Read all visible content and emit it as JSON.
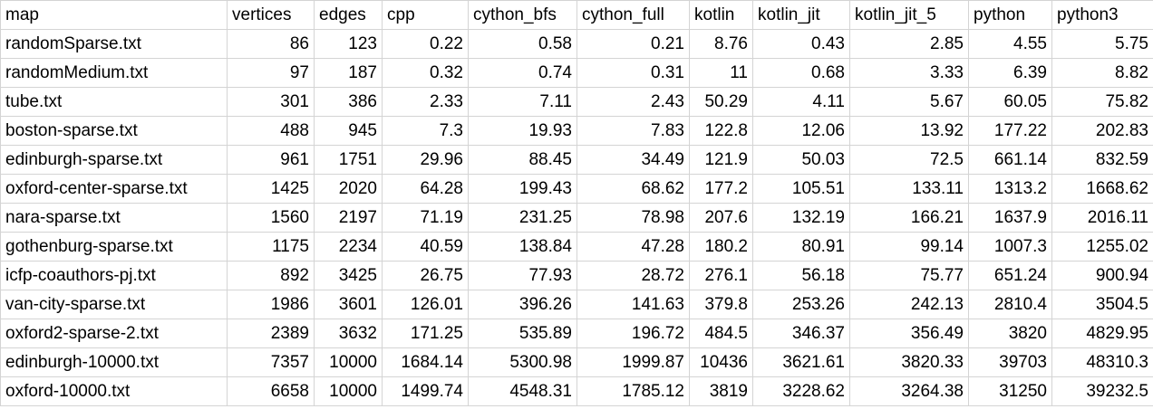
{
  "columns": [
    "map",
    "vertices",
    "edges",
    "cpp",
    "cython_bfs",
    "cython_full",
    "kotlin",
    "kotlin_jit",
    "kotlin_jit_5",
    "python",
    "python3"
  ],
  "rows": [
    [
      "randomSparse.txt",
      "86",
      "123",
      "0.22",
      "0.58",
      "0.21",
      "8.76",
      "0.43",
      "2.85",
      "4.55",
      "5.75"
    ],
    [
      "randomMedium.txt",
      "97",
      "187",
      "0.32",
      "0.74",
      "0.31",
      "11",
      "0.68",
      "3.33",
      "6.39",
      "8.82"
    ],
    [
      "tube.txt",
      "301",
      "386",
      "2.33",
      "7.11",
      "2.43",
      "50.29",
      "4.11",
      "5.67",
      "60.05",
      "75.82"
    ],
    [
      "boston-sparse.txt",
      "488",
      "945",
      "7.3",
      "19.93",
      "7.83",
      "122.8",
      "12.06",
      "13.92",
      "177.22",
      "202.83"
    ],
    [
      "edinburgh-sparse.txt",
      "961",
      "1751",
      "29.96",
      "88.45",
      "34.49",
      "121.9",
      "50.03",
      "72.5",
      "661.14",
      "832.59"
    ],
    [
      "oxford-center-sparse.txt",
      "1425",
      "2020",
      "64.28",
      "199.43",
      "68.62",
      "177.2",
      "105.51",
      "133.11",
      "1313.2",
      "1668.62"
    ],
    [
      "nara-sparse.txt",
      "1560",
      "2197",
      "71.19",
      "231.25",
      "78.98",
      "207.6",
      "132.19",
      "166.21",
      "1637.9",
      "2016.11"
    ],
    [
      "gothenburg-sparse.txt",
      "1175",
      "2234",
      "40.59",
      "138.84",
      "47.28",
      "180.2",
      "80.91",
      "99.14",
      "1007.3",
      "1255.02"
    ],
    [
      "icfp-coauthors-pj.txt",
      "892",
      "3425",
      "26.75",
      "77.93",
      "28.72",
      "276.1",
      "56.18",
      "75.77",
      "651.24",
      "900.94"
    ],
    [
      "van-city-sparse.txt",
      "1986",
      "3601",
      "126.01",
      "396.26",
      "141.63",
      "379.8",
      "253.26",
      "242.13",
      "2810.4",
      "3504.5"
    ],
    [
      "oxford2-sparse-2.txt",
      "2389",
      "3632",
      "171.25",
      "535.89",
      "196.72",
      "484.5",
      "346.37",
      "356.49",
      "3820",
      "4829.95"
    ],
    [
      "edinburgh-10000.txt",
      "7357",
      "10000",
      "1684.14",
      "5300.98",
      "1999.87",
      "10436",
      "3621.61",
      "3820.33",
      "39703",
      "48310.3"
    ],
    [
      "oxford-10000.txt",
      "6658",
      "10000",
      "1499.74",
      "4548.31",
      "1785.12",
      "3819",
      "3228.62",
      "3264.38",
      "31250",
      "39232.5"
    ]
  ]
}
